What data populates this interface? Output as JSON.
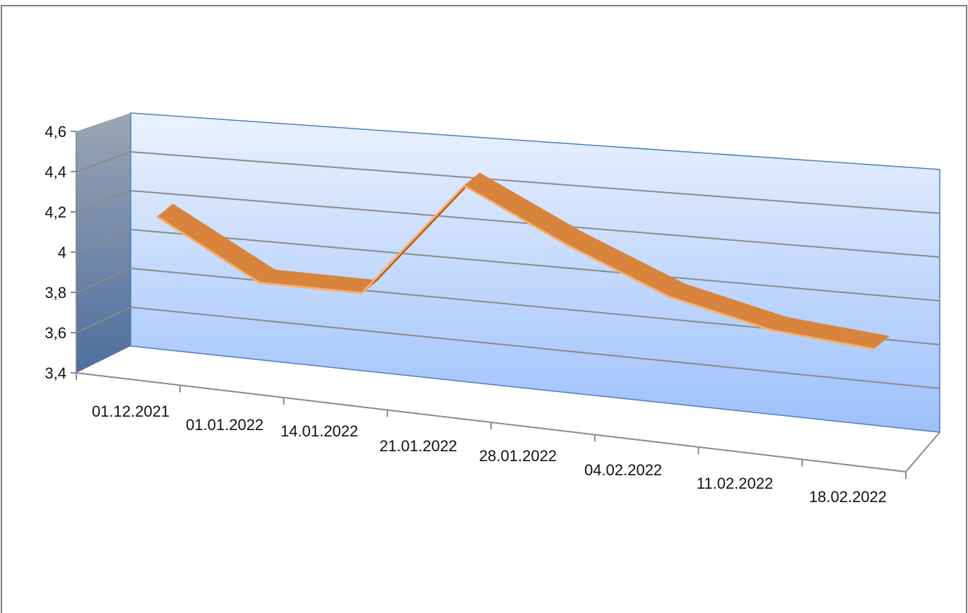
{
  "chart_data": {
    "type": "line",
    "view": "3d-perspective",
    "categories": [
      "01.12.2021",
      "01.01.2022",
      "14.01.2022",
      "21.01.2022",
      "28.01.2022",
      "04.02.2022",
      "11.02.2022",
      "18.02.2022"
    ],
    "series": [
      {
        "values": [
          4.14,
          3.86,
          3.86,
          4.43,
          4.19,
          3.99,
          3.88,
          3.84
        ]
      }
    ],
    "y_ticks": [
      "3,4",
      "3,6",
      "3,8",
      "4",
      "4,2",
      "4,4",
      "4,6"
    ],
    "ylim": [
      3.4,
      4.6
    ],
    "grid": true,
    "legend": "none"
  },
  "colors": {
    "series_front": "#D8843C",
    "series_top": "#F2A462",
    "series_bottom": "#9A4F12",
    "series_edge": "#F5B070",
    "back_wall_top": "#EAF2FE",
    "back_wall_bottom": "#9DC0FB",
    "side_wall_top": "#9AA6B4",
    "side_wall_bottom": "#4E6E9E",
    "wall_border": "#4A7EBB",
    "gridline": "#8A8A8A",
    "axis": "#8A8A8A",
    "frame_border": "#7F7F7F"
  }
}
